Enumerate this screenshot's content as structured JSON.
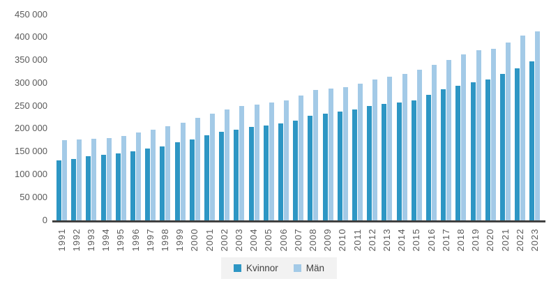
{
  "chart_data": {
    "type": "bar",
    "title": "",
    "xlabel": "",
    "ylabel": "",
    "grid": false,
    "legend_position": "bottom",
    "ylim": [
      0,
      450000
    ],
    "y_ticks": [
      "0",
      "50 000",
      "100 000",
      "150 000",
      "200 000",
      "250 000",
      "300 000",
      "350 000",
      "400 000",
      "450 000"
    ],
    "categories": [
      "1991",
      "1992",
      "1993",
      "1994",
      "1995",
      "1996",
      "1997",
      "1998",
      "1999",
      "2000",
      "2001",
      "2002",
      "2003",
      "2004",
      "2005",
      "2006",
      "2007",
      "2008",
      "2009",
      "2010",
      "2011",
      "2012",
      "2013",
      "2014",
      "2015",
      "2016",
      "2017",
      "2018",
      "2019",
      "2020",
      "2021",
      "2022",
      "2023"
    ],
    "series": [
      {
        "name": "Kvinnor",
        "color": "#2D96C4",
        "values": [
          130000,
          134000,
          139000,
          143000,
          146000,
          151000,
          156000,
          161000,
          170000,
          177000,
          186000,
          193000,
          198000,
          203000,
          207000,
          212000,
          218000,
          228000,
          233000,
          237000,
          242000,
          249000,
          254000,
          257000,
          262000,
          274000,
          286000,
          294000,
          302000,
          308000,
          319000,
          332000,
          347000
        ]
      },
      {
        "name": "Män",
        "color": "#A3CAE7",
        "values": [
          175000,
          176000,
          178000,
          180000,
          184000,
          191000,
          197000,
          205000,
          213000,
          224000,
          232000,
          242000,
          250000,
          253000,
          257000,
          262000,
          273000,
          285000,
          287000,
          290000,
          299000,
          307000,
          313000,
          319000,
          329000,
          340000,
          350000,
          363000,
          371000,
          375000,
          388000,
          403000,
          412000
        ]
      }
    ]
  },
  "style": {
    "axis_line_color": "#404040",
    "tick_label_color": "#595959",
    "legend_background": "#F2F2F2",
    "legend_text_color": "#404040",
    "background": "#ffffff"
  }
}
